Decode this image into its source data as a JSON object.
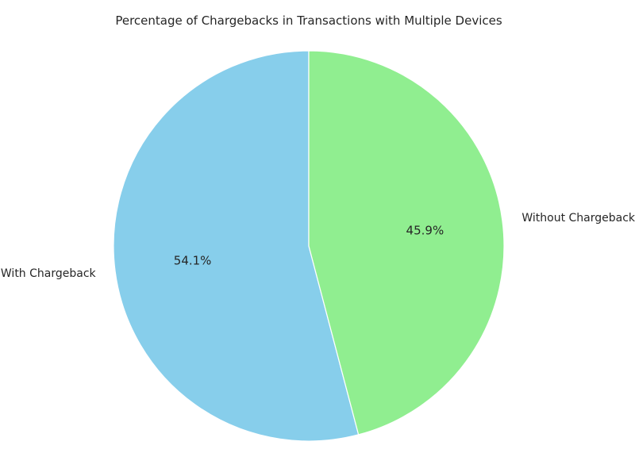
{
  "chart_data": {
    "type": "pie",
    "title": "Percentage of Chargebacks in Transactions with Multiple Devices",
    "slices": [
      {
        "label": "With Chargeback",
        "value": 54.1,
        "pct_label": "54.1%",
        "color": "#87ceeb"
      },
      {
        "label": "Without Chargeback",
        "value": 45.9,
        "pct_label": "45.9%",
        "color": "#90ee90"
      }
    ],
    "start_angle_deg": 90,
    "direction": "counterclockwise",
    "edge_color": "#ffffff"
  }
}
